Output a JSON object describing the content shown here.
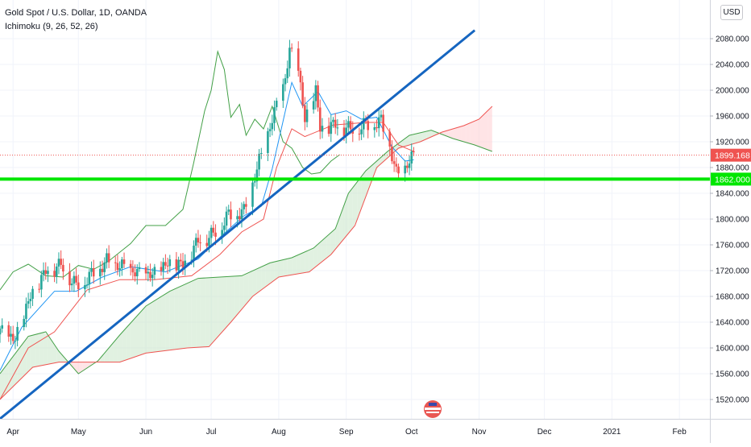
{
  "legend": {
    "title": "Gold Spot / U.S. Dollar, 1D, OANDA",
    "indicator": "Ichimoku (9, 26, 52, 26)"
  },
  "currency": "USD",
  "chart_data": {
    "type": "candlestick",
    "title": "Gold Spot / U.S. Dollar, 1D, OANDA",
    "indicator": "Ichimoku (9, 26, 52, 26)",
    "ylim": [
      1490,
      2140
    ],
    "y_ticks": [
      2080,
      2040,
      2000,
      1960,
      1920,
      1880,
      1840,
      1800,
      1760,
      1720,
      1680,
      1640,
      1600,
      1560,
      1520
    ],
    "y_tick_labels": [
      "2080.000",
      "2040.000",
      "2000.000",
      "1960.000",
      "1920.000",
      "1880.000",
      "1840.000",
      "1800.000",
      "1760.000",
      "1720.000",
      "1680.000",
      "1640.000",
      "1600.000",
      "1560.000",
      "1520.000"
    ],
    "x_start": "2020-03-26",
    "x_end": "2021-02-15",
    "x_ticks": [
      {
        "date": "2020-04-01",
        "label": "Apr"
      },
      {
        "date": "2020-05-01",
        "label": "May"
      },
      {
        "date": "2020-06-01",
        "label": "Jun"
      },
      {
        "date": "2020-07-01",
        "label": "Jul"
      },
      {
        "date": "2020-08-01",
        "label": "Aug"
      },
      {
        "date": "2020-09-01",
        "label": "Sep"
      },
      {
        "date": "2020-10-01",
        "label": "Oct"
      },
      {
        "date": "2020-11-01",
        "label": "Nov"
      },
      {
        "date": "2020-12-01",
        "label": "Dec"
      },
      {
        "date": "2021-01-01",
        "label": "2021"
      },
      {
        "date": "2021-02-01",
        "label": "Feb"
      }
    ],
    "current_price": {
      "value": 1899.168,
      "label": "1899.168",
      "color": "#ef5350"
    },
    "horizontal_line": {
      "value": 1862.0,
      "label": "1862.000",
      "color": "#00e600"
    },
    "trend_line": {
      "start": [
        "2020-03-26",
        1490
      ],
      "end": [
        "2020-10-30",
        2093
      ],
      "color": "#1565c0"
    },
    "colors": {
      "up": "#26a69a",
      "down": "#ef5350",
      "tenkan": "#2196f3",
      "kijun": "#ef5350",
      "chikou": "#43a047",
      "span_a": "#43a047",
      "span_b": "#ef5350",
      "cloud_bull": "#c8e6c9",
      "cloud_bear": "#ffcdd2"
    },
    "close_path": [
      [
        "2020-03-26",
        1625
      ],
      [
        "2020-04-02",
        1612
      ],
      [
        "2020-04-09",
        1680
      ],
      [
        "2020-04-16",
        1718
      ],
      [
        "2020-04-23",
        1728
      ],
      [
        "2020-04-30",
        1695
      ],
      [
        "2020-05-07",
        1712
      ],
      [
        "2020-05-14",
        1733
      ],
      [
        "2020-05-21",
        1725
      ],
      [
        "2020-05-28",
        1715
      ],
      [
        "2020-06-04",
        1712
      ],
      [
        "2020-06-11",
        1730
      ],
      [
        "2020-06-18",
        1728
      ],
      [
        "2020-06-25",
        1765
      ],
      [
        "2020-07-02",
        1775
      ],
      [
        "2020-07-09",
        1805
      ],
      [
        "2020-07-16",
        1810
      ],
      [
        "2020-07-23",
        1888
      ],
      [
        "2020-07-28",
        1942
      ],
      [
        "2020-07-31",
        1975
      ],
      [
        "2020-08-04",
        2015
      ],
      [
        "2020-08-06",
        2062
      ],
      [
        "2020-08-10",
        2030
      ],
      [
        "2020-08-13",
        1952
      ],
      [
        "2020-08-18",
        1998
      ],
      [
        "2020-08-20",
        1940
      ],
      [
        "2020-08-27",
        1945
      ],
      [
        "2020-09-03",
        1938
      ],
      [
        "2020-09-10",
        1945
      ],
      [
        "2020-09-17",
        1950
      ],
      [
        "2020-09-21",
        1912
      ],
      [
        "2020-09-24",
        1868
      ],
      [
        "2020-09-28",
        1878
      ],
      [
        "2020-10-02",
        1899
      ]
    ],
    "tenkan_path": [
      [
        "2020-03-26",
        1565
      ],
      [
        "2020-04-05",
        1632
      ],
      [
        "2020-04-20",
        1688
      ],
      [
        "2020-04-30",
        1688
      ],
      [
        "2020-05-12",
        1710
      ],
      [
        "2020-05-25",
        1726
      ],
      [
        "2020-06-10",
        1718
      ],
      [
        "2020-06-25",
        1738
      ],
      [
        "2020-07-06",
        1775
      ],
      [
        "2020-07-16",
        1805
      ],
      [
        "2020-07-24",
        1820
      ],
      [
        "2020-07-29",
        1878
      ],
      [
        "2020-08-03",
        1952
      ],
      [
        "2020-08-07",
        2012
      ],
      [
        "2020-08-12",
        1975
      ],
      [
        "2020-08-19",
        1998
      ],
      [
        "2020-08-25",
        1962
      ],
      [
        "2020-09-01",
        1968
      ],
      [
        "2020-09-08",
        1955
      ],
      [
        "2020-09-15",
        1958
      ],
      [
        "2020-09-22",
        1912
      ],
      [
        "2020-09-28",
        1890
      ],
      [
        "2020-10-02",
        1892
      ]
    ],
    "kijun_path": [
      [
        "2020-03-26",
        1520
      ],
      [
        "2020-04-08",
        1600
      ],
      [
        "2020-04-20",
        1625
      ],
      [
        "2020-05-05",
        1690
      ],
      [
        "2020-05-20",
        1706
      ],
      [
        "2020-06-05",
        1706
      ],
      [
        "2020-06-22",
        1712
      ],
      [
        "2020-07-05",
        1745
      ],
      [
        "2020-07-15",
        1780
      ],
      [
        "2020-07-25",
        1800
      ],
      [
        "2020-07-31",
        1880
      ],
      [
        "2020-08-07",
        1940
      ],
      [
        "2020-08-13",
        1928
      ],
      [
        "2020-08-26",
        1946
      ],
      [
        "2020-09-10",
        1950
      ],
      [
        "2020-09-18",
        1950
      ],
      [
        "2020-09-25",
        1915
      ],
      [
        "2020-10-02",
        1905
      ]
    ],
    "chikou_path": [
      [
        "2020-03-26",
        1690
      ],
      [
        "2020-04-01",
        1718
      ],
      [
        "2020-04-08",
        1730
      ],
      [
        "2020-04-16",
        1712
      ],
      [
        "2020-04-24",
        1710
      ],
      [
        "2020-05-01",
        1728
      ],
      [
        "2020-05-08",
        1722
      ],
      [
        "2020-05-15",
        1735
      ],
      [
        "2020-05-25",
        1762
      ],
      [
        "2020-06-01",
        1790
      ],
      [
        "2020-06-10",
        1790
      ],
      [
        "2020-06-18",
        1815
      ],
      [
        "2020-06-23",
        1888
      ],
      [
        "2020-06-28",
        1968
      ],
      [
        "2020-07-01",
        2000
      ],
      [
        "2020-07-04",
        2060
      ],
      [
        "2020-07-07",
        2032
      ],
      [
        "2020-07-10",
        1958
      ],
      [
        "2020-07-14",
        1978
      ],
      [
        "2020-07-17",
        1930
      ],
      [
        "2020-07-21",
        1955
      ],
      [
        "2020-07-25",
        1940
      ],
      [
        "2020-07-29",
        1975
      ],
      [
        "2020-08-03",
        1920
      ],
      [
        "2020-08-07",
        1910
      ],
      [
        "2020-08-12",
        1880
      ],
      [
        "2020-08-16",
        1870
      ],
      [
        "2020-08-20",
        1872
      ],
      [
        "2020-08-25",
        1890
      ],
      [
        "2020-08-29",
        1900
      ]
    ],
    "span_a_path": [
      [
        "2020-03-26",
        1560
      ],
      [
        "2020-04-08",
        1618
      ],
      [
        "2020-04-16",
        1625
      ],
      [
        "2020-04-22",
        1595
      ],
      [
        "2020-05-01",
        1560
      ],
      [
        "2020-05-10",
        1580
      ],
      [
        "2020-05-20",
        1620
      ],
      [
        "2020-06-01",
        1665
      ],
      [
        "2020-06-12",
        1688
      ],
      [
        "2020-06-25",
        1708
      ],
      [
        "2020-07-15",
        1712
      ],
      [
        "2020-07-28",
        1732
      ],
      [
        "2020-08-07",
        1740
      ],
      [
        "2020-08-17",
        1755
      ],
      [
        "2020-08-27",
        1785
      ],
      [
        "2020-09-02",
        1840
      ],
      [
        "2020-09-10",
        1875
      ],
      [
        "2020-09-20",
        1905
      ],
      [
        "2020-09-30",
        1930
      ],
      [
        "2020-10-10",
        1938
      ],
      [
        "2020-10-20",
        1925
      ],
      [
        "2020-10-30",
        1915
      ],
      [
        "2020-11-07",
        1905
      ]
    ],
    "span_b_path": [
      [
        "2020-03-26",
        1520
      ],
      [
        "2020-04-10",
        1570
      ],
      [
        "2020-04-22",
        1578
      ],
      [
        "2020-05-20",
        1578
      ],
      [
        "2020-06-01",
        1592
      ],
      [
        "2020-06-20",
        1600
      ],
      [
        "2020-06-30",
        1602
      ],
      [
        "2020-07-10",
        1640
      ],
      [
        "2020-07-20",
        1680
      ],
      [
        "2020-08-01",
        1710
      ],
      [
        "2020-08-15",
        1718
      ],
      [
        "2020-08-25",
        1745
      ],
      [
        "2020-09-05",
        1790
      ],
      [
        "2020-09-15",
        1880
      ],
      [
        "2020-09-25",
        1910
      ],
      [
        "2020-10-05",
        1920
      ],
      [
        "2020-10-15",
        1935
      ],
      [
        "2020-10-25",
        1945
      ],
      [
        "2020-11-01",
        1955
      ],
      [
        "2020-11-07",
        1975
      ]
    ]
  }
}
